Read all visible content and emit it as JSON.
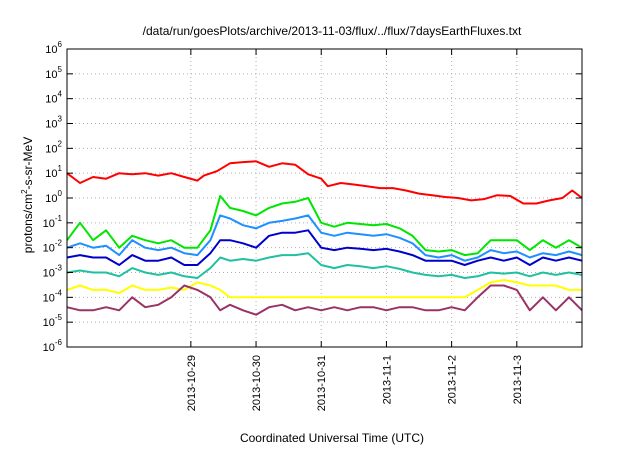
{
  "chart_data": {
    "type": "line",
    "title": "/data/run/goesPlots/archive/2013-11-03/flux/../flux/7daysEarthFluxes.txt",
    "xlabel": "Coordinated Universal Time (UTC)",
    "ylabel_parts": [
      "protons/cm",
      "2",
      "-s-sr-MeV"
    ],
    "y_scale": "log",
    "ylim": [
      1e-06,
      1000000.0
    ],
    "y_ticks": [
      {
        "base": "10",
        "exp": "-6",
        "value": 1e-06
      },
      {
        "base": "10",
        "exp": "-5",
        "value": 1e-05
      },
      {
        "base": "10",
        "exp": "-4",
        "value": 0.0001
      },
      {
        "base": "10",
        "exp": "-3",
        "value": 0.001
      },
      {
        "base": "10",
        "exp": "-2",
        "value": 0.01
      },
      {
        "base": "10",
        "exp": "-1",
        "value": 0.1
      },
      {
        "base": "10",
        "exp": "0",
        "value": 1
      },
      {
        "base": "10",
        "exp": "1",
        "value": 10
      },
      {
        "base": "10",
        "exp": "2",
        "value": 100
      },
      {
        "base": "10",
        "exp": "3",
        "value": 1000
      },
      {
        "base": "10",
        "exp": "4",
        "value": 10000
      },
      {
        "base": "10",
        "exp": "5",
        "value": 100000
      },
      {
        "base": "10",
        "exp": "6",
        "value": 1000000
      }
    ],
    "x_domain_days": [
      -1.9,
      6.0
    ],
    "x_ticks": [
      {
        "label": "2013-10-29",
        "value": 0
      },
      {
        "label": "2013-10-30",
        "value": 1
      },
      {
        "label": "2013-10-31",
        "value": 2
      },
      {
        "label": "2013-11-1",
        "value": 3
      },
      {
        "label": "2013-11-2",
        "value": 4
      },
      {
        "label": "2013-11-3",
        "value": 5
      }
    ],
    "grid": true,
    "series": [
      {
        "color": "#ff0000",
        "points": [
          [
            -1.9,
            10
          ],
          [
            -1.7,
            4
          ],
          [
            -1.5,
            7
          ],
          [
            -1.3,
            6
          ],
          [
            -1.1,
            10
          ],
          [
            -0.9,
            9
          ],
          [
            -0.7,
            10
          ],
          [
            -0.5,
            8
          ],
          [
            -0.3,
            10
          ],
          [
            -0.1,
            7
          ],
          [
            0.1,
            5
          ],
          [
            0.2,
            8
          ],
          [
            0.4,
            12
          ],
          [
            0.6,
            25
          ],
          [
            0.8,
            28
          ],
          [
            1.0,
            30
          ],
          [
            1.2,
            18
          ],
          [
            1.4,
            25
          ],
          [
            1.6,
            22
          ],
          [
            1.8,
            9
          ],
          [
            2.0,
            6
          ],
          [
            2.1,
            3
          ],
          [
            2.3,
            4
          ],
          [
            2.5,
            3.5
          ],
          [
            2.7,
            3
          ],
          [
            2.9,
            2.5
          ],
          [
            3.1,
            2.5
          ],
          [
            3.3,
            2
          ],
          [
            3.5,
            1.5
          ],
          [
            3.7,
            1.3
          ],
          [
            3.9,
            1.1
          ],
          [
            4.1,
            1
          ],
          [
            4.3,
            0.8
          ],
          [
            4.5,
            0.9
          ],
          [
            4.7,
            1.3
          ],
          [
            4.9,
            1.2
          ],
          [
            5.1,
            0.6
          ],
          [
            5.3,
            0.6
          ],
          [
            5.5,
            0.8
          ],
          [
            5.7,
            1
          ],
          [
            5.85,
            2
          ],
          [
            6.0,
            1
          ]
        ]
      },
      {
        "color": "#00e600",
        "points": [
          [
            -1.9,
            0.02
          ],
          [
            -1.7,
            0.1
          ],
          [
            -1.5,
            0.02
          ],
          [
            -1.3,
            0.05
          ],
          [
            -1.1,
            0.01
          ],
          [
            -0.9,
            0.03
          ],
          [
            -0.7,
            0.02
          ],
          [
            -0.5,
            0.015
          ],
          [
            -0.3,
            0.02
          ],
          [
            -0.1,
            0.01
          ],
          [
            0.1,
            0.01
          ],
          [
            0.3,
            0.05
          ],
          [
            0.45,
            1.2
          ],
          [
            0.6,
            0.4
          ],
          [
            0.8,
            0.3
          ],
          [
            1.0,
            0.2
          ],
          [
            1.2,
            0.4
          ],
          [
            1.4,
            0.6
          ],
          [
            1.6,
            0.7
          ],
          [
            1.8,
            1.0
          ],
          [
            2.0,
            0.1
          ],
          [
            2.2,
            0.07
          ],
          [
            2.4,
            0.1
          ],
          [
            2.6,
            0.09
          ],
          [
            2.8,
            0.08
          ],
          [
            3.0,
            0.09
          ],
          [
            3.2,
            0.06
          ],
          [
            3.4,
            0.03
          ],
          [
            3.6,
            0.008
          ],
          [
            3.8,
            0.007
          ],
          [
            4.0,
            0.008
          ],
          [
            4.2,
            0.005
          ],
          [
            4.4,
            0.006
          ],
          [
            4.6,
            0.02
          ],
          [
            4.8,
            0.02
          ],
          [
            5.0,
            0.02
          ],
          [
            5.2,
            0.008
          ],
          [
            5.4,
            0.02
          ],
          [
            5.6,
            0.01
          ],
          [
            5.8,
            0.02
          ],
          [
            6.0,
            0.01
          ]
        ]
      },
      {
        "color": "#1e90ff",
        "points": [
          [
            -1.9,
            0.01
          ],
          [
            -1.7,
            0.015
          ],
          [
            -1.5,
            0.01
          ],
          [
            -1.3,
            0.012
          ],
          [
            -1.1,
            0.005
          ],
          [
            -0.9,
            0.02
          ],
          [
            -0.7,
            0.01
          ],
          [
            -0.5,
            0.008
          ],
          [
            -0.3,
            0.01
          ],
          [
            -0.1,
            0.006
          ],
          [
            0.1,
            0.005
          ],
          [
            0.3,
            0.02
          ],
          [
            0.45,
            0.2
          ],
          [
            0.6,
            0.15
          ],
          [
            0.8,
            0.08
          ],
          [
            1.0,
            0.06
          ],
          [
            1.2,
            0.1
          ],
          [
            1.4,
            0.12
          ],
          [
            1.6,
            0.15
          ],
          [
            1.8,
            0.2
          ],
          [
            2.0,
            0.04
          ],
          [
            2.2,
            0.03
          ],
          [
            2.4,
            0.04
          ],
          [
            2.6,
            0.035
          ],
          [
            2.8,
            0.03
          ],
          [
            3.0,
            0.035
          ],
          [
            3.2,
            0.025
          ],
          [
            3.4,
            0.015
          ],
          [
            3.6,
            0.005
          ],
          [
            3.8,
            0.004
          ],
          [
            4.0,
            0.005
          ],
          [
            4.2,
            0.003
          ],
          [
            4.4,
            0.004
          ],
          [
            4.6,
            0.008
          ],
          [
            4.8,
            0.006
          ],
          [
            5.0,
            0.007
          ],
          [
            5.2,
            0.004
          ],
          [
            5.4,
            0.006
          ],
          [
            5.6,
            0.005
          ],
          [
            5.8,
            0.007
          ],
          [
            6.0,
            0.005
          ]
        ]
      },
      {
        "color": "#0000cd",
        "points": [
          [
            -1.9,
            0.004
          ],
          [
            -1.7,
            0.005
          ],
          [
            -1.5,
            0.004
          ],
          [
            -1.3,
            0.004
          ],
          [
            -1.1,
            0.002
          ],
          [
            -0.9,
            0.005
          ],
          [
            -0.7,
            0.003
          ],
          [
            -0.5,
            0.003
          ],
          [
            -0.3,
            0.004
          ],
          [
            -0.1,
            0.002
          ],
          [
            0.1,
            0.002
          ],
          [
            0.3,
            0.006
          ],
          [
            0.45,
            0.02
          ],
          [
            0.6,
            0.02
          ],
          [
            0.8,
            0.015
          ],
          [
            1.0,
            0.01
          ],
          [
            1.2,
            0.03
          ],
          [
            1.4,
            0.04
          ],
          [
            1.6,
            0.04
          ],
          [
            1.8,
            0.05
          ],
          [
            2.0,
            0.01
          ],
          [
            2.2,
            0.008
          ],
          [
            2.4,
            0.01
          ],
          [
            2.6,
            0.009
          ],
          [
            2.8,
            0.008
          ],
          [
            3.0,
            0.009
          ],
          [
            3.2,
            0.007
          ],
          [
            3.4,
            0.005
          ],
          [
            3.6,
            0.003
          ],
          [
            3.8,
            0.003
          ],
          [
            4.0,
            0.003
          ],
          [
            4.2,
            0.002
          ],
          [
            4.4,
            0.003
          ],
          [
            4.6,
            0.004
          ],
          [
            4.8,
            0.003
          ],
          [
            5.0,
            0.004
          ],
          [
            5.2,
            0.002
          ],
          [
            5.4,
            0.004
          ],
          [
            5.6,
            0.003
          ],
          [
            5.8,
            0.004
          ],
          [
            6.0,
            0.003
          ]
        ]
      },
      {
        "color": "#20c0a0",
        "points": [
          [
            -1.9,
            0.001
          ],
          [
            -1.7,
            0.0012
          ],
          [
            -1.5,
            0.001
          ],
          [
            -1.3,
            0.001
          ],
          [
            -1.1,
            0.0007
          ],
          [
            -0.9,
            0.0015
          ],
          [
            -0.7,
            0.001
          ],
          [
            -0.5,
            0.0008
          ],
          [
            -0.3,
            0.001
          ],
          [
            -0.1,
            0.0007
          ],
          [
            0.1,
            0.0006
          ],
          [
            0.3,
            0.0015
          ],
          [
            0.45,
            0.004
          ],
          [
            0.6,
            0.003
          ],
          [
            0.8,
            0.0035
          ],
          [
            1.0,
            0.003
          ],
          [
            1.2,
            0.004
          ],
          [
            1.4,
            0.005
          ],
          [
            1.6,
            0.005
          ],
          [
            1.8,
            0.006
          ],
          [
            2.0,
            0.002
          ],
          [
            2.2,
            0.0015
          ],
          [
            2.4,
            0.002
          ],
          [
            2.6,
            0.0018
          ],
          [
            2.8,
            0.0015
          ],
          [
            3.0,
            0.0018
          ],
          [
            3.2,
            0.0014
          ],
          [
            3.4,
            0.001
          ],
          [
            3.6,
            0.0008
          ],
          [
            3.8,
            0.0007
          ],
          [
            4.0,
            0.0008
          ],
          [
            4.2,
            0.0006
          ],
          [
            4.4,
            0.0007
          ],
          [
            4.6,
            0.001
          ],
          [
            4.8,
            0.0009
          ],
          [
            5.0,
            0.001
          ],
          [
            5.2,
            0.0007
          ],
          [
            5.4,
            0.001
          ],
          [
            5.6,
            0.0008
          ],
          [
            5.8,
            0.001
          ],
          [
            6.0,
            0.0008
          ]
        ]
      },
      {
        "color": "#ffff00",
        "points": [
          [
            -1.9,
            0.0002
          ],
          [
            -1.7,
            0.0003
          ],
          [
            -1.5,
            0.0002
          ],
          [
            -1.3,
            0.0002
          ],
          [
            -1.1,
            0.00015
          ],
          [
            -0.9,
            0.0003
          ],
          [
            -0.7,
            0.0002
          ],
          [
            -0.5,
            0.0002
          ],
          [
            -0.3,
            0.00025
          ],
          [
            -0.1,
            0.0002
          ],
          [
            0.1,
            0.0004
          ],
          [
            0.3,
            0.0003
          ],
          [
            0.45,
            0.0002
          ],
          [
            0.6,
            0.0001
          ],
          [
            0.8,
            0.0001
          ],
          [
            1.0,
            0.0001
          ],
          [
            1.2,
            0.0001
          ],
          [
            1.4,
            0.0001
          ],
          [
            1.6,
            0.0001
          ],
          [
            1.8,
            0.0001
          ],
          [
            2.0,
            0.0001
          ],
          [
            2.2,
            0.0001
          ],
          [
            2.4,
            0.0001
          ],
          [
            2.6,
            0.0001
          ],
          [
            2.8,
            0.0001
          ],
          [
            3.0,
            0.0001
          ],
          [
            3.2,
            0.0001
          ],
          [
            3.4,
            0.0001
          ],
          [
            3.6,
            0.0001
          ],
          [
            3.8,
            0.0001
          ],
          [
            4.0,
            0.0001
          ],
          [
            4.2,
            0.0001
          ],
          [
            4.4,
            0.0002
          ],
          [
            4.6,
            0.0004
          ],
          [
            4.8,
            0.0005
          ],
          [
            5.0,
            0.0004
          ],
          [
            5.2,
            0.0003
          ],
          [
            5.4,
            0.0003
          ],
          [
            5.6,
            0.0003
          ],
          [
            5.8,
            0.0002
          ],
          [
            6.0,
            0.0002
          ]
        ]
      },
      {
        "color": "#993366",
        "points": [
          [
            -1.9,
            4e-05
          ],
          [
            -1.7,
            3e-05
          ],
          [
            -1.5,
            3e-05
          ],
          [
            -1.3,
            4e-05
          ],
          [
            -1.1,
            3e-05
          ],
          [
            -0.9,
            0.0001
          ],
          [
            -0.7,
            4e-05
          ],
          [
            -0.5,
            5e-05
          ],
          [
            -0.3,
            0.0001
          ],
          [
            -0.1,
            0.0003
          ],
          [
            0.1,
            0.0002
          ],
          [
            0.3,
            0.0001
          ],
          [
            0.45,
            3e-05
          ],
          [
            0.6,
            5e-05
          ],
          [
            0.8,
            3e-05
          ],
          [
            1.0,
            2e-05
          ],
          [
            1.2,
            4e-05
          ],
          [
            1.4,
            5e-05
          ],
          [
            1.6,
            3e-05
          ],
          [
            1.8,
            4e-05
          ],
          [
            2.0,
            3e-05
          ],
          [
            2.2,
            4e-05
          ],
          [
            2.4,
            3e-05
          ],
          [
            2.6,
            4e-05
          ],
          [
            2.8,
            4e-05
          ],
          [
            3.0,
            3e-05
          ],
          [
            3.2,
            4e-05
          ],
          [
            3.4,
            4e-05
          ],
          [
            3.6,
            3e-05
          ],
          [
            3.8,
            3e-05
          ],
          [
            4.0,
            4e-05
          ],
          [
            4.2,
            3e-05
          ],
          [
            4.4,
            0.0001
          ],
          [
            4.6,
            0.0003
          ],
          [
            4.8,
            0.0003
          ],
          [
            5.0,
            0.0002
          ],
          [
            5.2,
            3e-05
          ],
          [
            5.4,
            0.0001
          ],
          [
            5.6,
            3e-05
          ],
          [
            5.8,
            0.0001
          ],
          [
            6.0,
            3e-05
          ]
        ]
      }
    ]
  }
}
